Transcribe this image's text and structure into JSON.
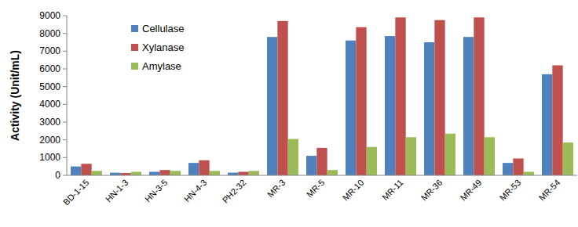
{
  "chart_data": {
    "type": "bar",
    "y_label": "Activity (Unit/mL)",
    "categories": [
      "BD-1-15",
      "HN-1-3",
      "HN-3-5",
      "HN-4-3",
      "PH2-32",
      "MR-3",
      "MR-5",
      "MR-10",
      "MR-11",
      "MR-36",
      "MR-49",
      "MR-53",
      "MR-54"
    ],
    "series": [
      {
        "name": "Cellulase",
        "color": "#4f81bd",
        "values": [
          500,
          150,
          200,
          700,
          150,
          7800,
          1100,
          7600,
          7850,
          7500,
          7800,
          700,
          5700
        ]
      },
      {
        "name": "Xylanase",
        "color": "#c0504d",
        "values": [
          650,
          130,
          300,
          850,
          200,
          8700,
          1550,
          8350,
          8900,
          8750,
          8900,
          950,
          6200
        ]
      },
      {
        "name": "Amylase",
        "color": "#9bbb59",
        "values": [
          250,
          200,
          250,
          250,
          250,
          2050,
          300,
          1600,
          2150,
          2350,
          2150,
          200,
          1850
        ]
      }
    ],
    "ylim": [
      0,
      9000
    ],
    "yticks": [
      0,
      1000,
      2000,
      3000,
      4000,
      5000,
      6000,
      7000,
      8000,
      9000
    ],
    "grid": false,
    "legend": "upper left"
  }
}
